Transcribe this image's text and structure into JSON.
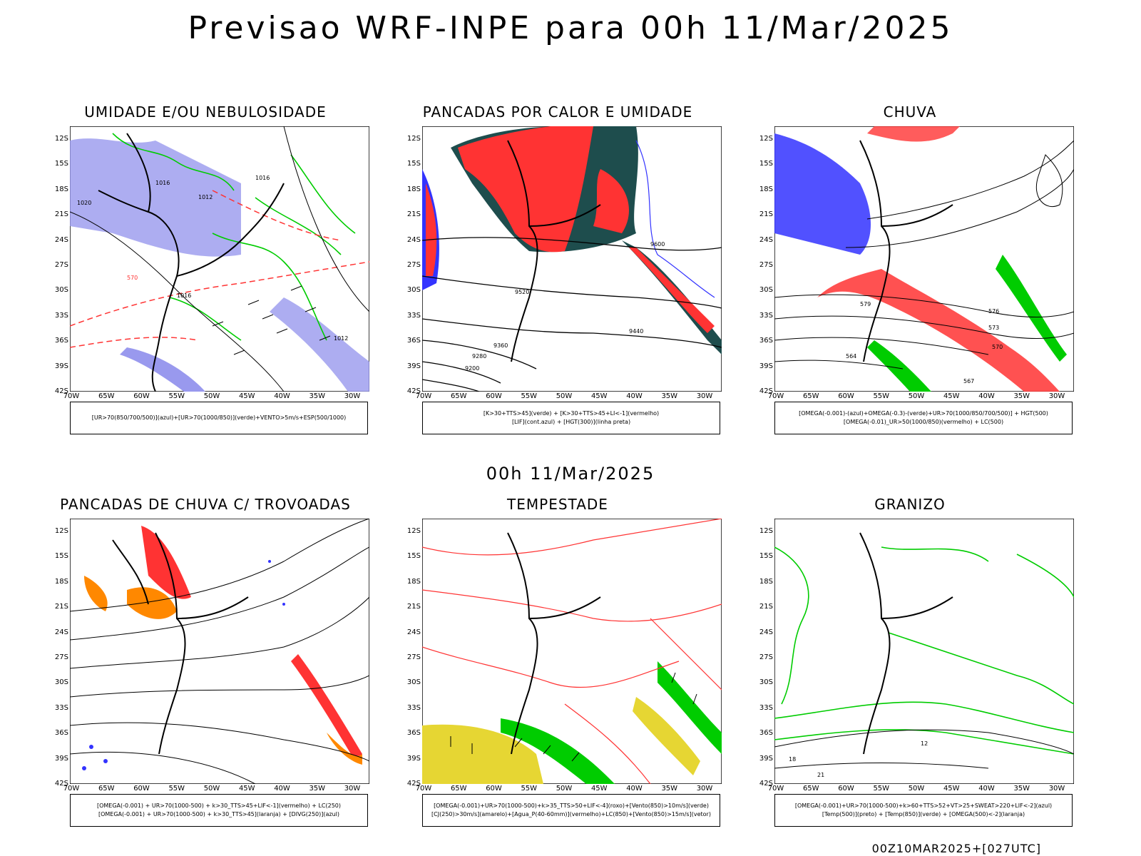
{
  "title": "Previsao WRF-INPE  para 00h 11/Mar/2025",
  "subtitle": "00h 11/Mar/2025",
  "footer": "00Z10MAR2025+[027UTC]",
  "axes": {
    "lat_labels": [
      "12S",
      "15S",
      "18S",
      "21S",
      "24S",
      "27S",
      "30S",
      "33S",
      "36S",
      "39S",
      "42S"
    ],
    "lon_labels": [
      "70W",
      "65W",
      "60W",
      "55W",
      "50W",
      "45W",
      "40W",
      "35W",
      "30W"
    ]
  },
  "colors": {
    "blue": "#3333ff",
    "green": "#00cc00",
    "red": "#ff3333",
    "lavender": "#9999ee",
    "darkteal": "#1e4d4d",
    "orange": "#ff8800",
    "yellow": "#e6d633",
    "black": "#000000"
  },
  "panels": [
    {
      "title": "UMIDADE E/OU NEBULOSIDADE",
      "legend": [
        "[UR>70(850/700/500)](azul)+[UR>70(1000/850)](verde)+VENTO>5m/s+ESP(500/1000)"
      ],
      "icon": "humidity-map-icon"
    },
    {
      "title": "PANCADAS POR CALOR E UMIDADE",
      "legend": [
        "[K>30+TTS>45](verde) + [K>30+TTS>45+LI<-1](vermelho)",
        "[LIF](cont.azul) + [HGT(300)](linha preta)"
      ],
      "icon": "heat-showers-map-icon"
    },
    {
      "title": "CHUVA",
      "legend": [
        "[OMEGA(-0.001)-(azul)+OMEGA(-0.3)-(verde)+UR>70(1000/850/700/500)] + HGT(500)",
        "[OMEGA(-0.01)_UR>50(1000/850)(vermelho) + LC(500)"
      ],
      "icon": "rain-map-icon"
    },
    {
      "title": "PANCADAS DE CHUVA C/ TROVOADAS",
      "legend": [
        "[OMEGA(-0.001) + UR>70(1000-500) + k>30_TTS>45+LIF<-1](vermelho) + LC(250)",
        "[OMEGA(-0.001) + UR>70(1000-500) + k>30_TTS>45](laranja) + [DIVG(250)](azul)"
      ],
      "icon": "thunderstorm-map-icon"
    },
    {
      "title": "TEMPESTADE",
      "legend": [
        "[OMEGA(-0.001)+UR>70(1000-500)+k>35_TTS>50+LIF<-4](roxo)+[Vento(850)>10m/s](verde)",
        "[CJ(250)>30m/s](amarelo)+[Agua_P(40-60mm)](vermelho)+LC(850)+[Vento(850)>15m/s](vetor)"
      ],
      "icon": "storm-map-icon"
    },
    {
      "title": "GRANIZO",
      "legend": [
        "[OMEGA(-0.001)+UR>70(1000-500)+k>60+TTS>52+VT>25+SWEAT>220+LIF<-2](azul)",
        "[Temp(500)](preto) + [Temp(850)](verde) + [OMEGA(500)<-2](laranja)"
      ],
      "icon": "hail-map-icon"
    }
  ],
  "contour_labels": {
    "p1": [
      "1016",
      "1012",
      "1020",
      "570",
      "1016",
      "1016",
      "1012"
    ],
    "p2": [
      "9600",
      "9520",
      "9440",
      "9360",
      "9280",
      "9200"
    ],
    "p3": [
      "579",
      "576",
      "573",
      "570",
      "567",
      "564"
    ],
    "p6": [
      "12",
      "18",
      "21"
    ]
  }
}
